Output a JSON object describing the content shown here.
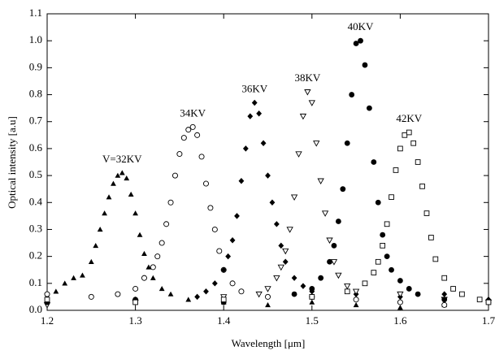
{
  "chart_data": {
    "type": "scatter",
    "x_label": "Wavelength  [μm]",
    "y_label": "Optical intensity  [a.u]",
    "xlim": [
      1.2,
      1.7
    ],
    "ylim": [
      0,
      1.1
    ],
    "xticks": [
      1.2,
      1.3,
      1.4,
      1.5,
      1.6,
      1.7
    ],
    "yticks": [
      {
        "value": 0,
        "label": "0.0"
      },
      0.1,
      0.2,
      0.3,
      0.4,
      0.5,
      0.6,
      0.7,
      0.8,
      0.9,
      {
        "value": 1,
        "label": "1.0"
      },
      1.1
    ],
    "series": [
      {
        "name": "V=32KV",
        "color": "#000000",
        "marker": "triangle",
        "x": [
          1.2,
          1.21,
          1.22,
          1.23,
          1.24,
          1.25,
          1.255,
          1.26,
          1.265,
          1.27,
          1.275,
          1.28,
          1.285,
          1.29,
          1.295,
          1.3,
          1.305,
          1.31,
          1.315,
          1.32,
          1.33,
          1.34,
          1.36,
          1.4,
          1.45,
          1.5,
          1.55,
          1.6,
          1.65
        ],
        "values": [
          0.05,
          0.07,
          0.1,
          0.12,
          0.13,
          0.18,
          0.24,
          0.3,
          0.36,
          0.42,
          0.47,
          0.5,
          0.51,
          0.49,
          0.43,
          0.36,
          0.28,
          0.21,
          0.16,
          0.12,
          0.08,
          0.06,
          0.04,
          0.03,
          0.02,
          0.03,
          0.02,
          0.01,
          0.02
        ]
      },
      {
        "name": "34KV",
        "color": "#000000",
        "marker": "circle-open",
        "x": [
          1.2,
          1.25,
          1.28,
          1.3,
          1.31,
          1.32,
          1.325,
          1.33,
          1.335,
          1.34,
          1.345,
          1.35,
          1.355,
          1.36,
          1.365,
          1.37,
          1.375,
          1.38,
          1.385,
          1.39,
          1.395,
          1.4,
          1.41,
          1.42,
          1.45,
          1.5,
          1.55,
          1.6,
          1.65
        ],
        "values": [
          0.06,
          0.05,
          0.06,
          0.08,
          0.12,
          0.16,
          0.2,
          0.25,
          0.32,
          0.4,
          0.5,
          0.58,
          0.64,
          0.67,
          0.68,
          0.65,
          0.57,
          0.47,
          0.38,
          0.3,
          0.22,
          0.15,
          0.1,
          0.07,
          0.05,
          0.05,
          0.04,
          0.03,
          0.02
        ]
      },
      {
        "name": "36KV",
        "color": "#000000",
        "marker": "diamond",
        "x": [
          1.2,
          1.3,
          1.37,
          1.38,
          1.39,
          1.4,
          1.405,
          1.41,
          1.415,
          1.42,
          1.425,
          1.43,
          1.435,
          1.44,
          1.445,
          1.45,
          1.455,
          1.46,
          1.465,
          1.47,
          1.48,
          1.49,
          1.5,
          1.55,
          1.6,
          1.65,
          1.7
        ],
        "values": [
          0.03,
          0.04,
          0.05,
          0.07,
          0.1,
          0.15,
          0.2,
          0.26,
          0.35,
          0.48,
          0.6,
          0.72,
          0.77,
          0.73,
          0.62,
          0.5,
          0.4,
          0.32,
          0.24,
          0.18,
          0.12,
          0.09,
          0.07,
          0.06,
          0.05,
          0.06,
          0.04
        ]
      },
      {
        "name": "38KV",
        "color": "#000000",
        "marker": "triangle-down-open",
        "x": [
          1.2,
          1.3,
          1.4,
          1.44,
          1.45,
          1.46,
          1.465,
          1.47,
          1.475,
          1.48,
          1.485,
          1.49,
          1.495,
          1.5,
          1.505,
          1.51,
          1.515,
          1.52,
          1.525,
          1.53,
          1.54,
          1.55,
          1.6,
          1.65,
          1.7
        ],
        "values": [
          0.02,
          0.03,
          0.05,
          0.06,
          0.08,
          0.12,
          0.16,
          0.22,
          0.3,
          0.42,
          0.58,
          0.72,
          0.81,
          0.77,
          0.62,
          0.48,
          0.36,
          0.26,
          0.18,
          0.13,
          0.09,
          0.07,
          0.06,
          0.04,
          0.03
        ]
      },
      {
        "name": "40KV",
        "color": "#000000",
        "marker": "circle",
        "x": [
          1.2,
          1.3,
          1.4,
          1.48,
          1.5,
          1.51,
          1.52,
          1.525,
          1.53,
          1.535,
          1.54,
          1.545,
          1.55,
          1.555,
          1.56,
          1.565,
          1.57,
          1.575,
          1.58,
          1.585,
          1.59,
          1.6,
          1.61,
          1.62,
          1.65,
          1.7
        ],
        "values": [
          0.03,
          0.04,
          0.03,
          0.06,
          0.08,
          0.12,
          0.18,
          0.24,
          0.33,
          0.45,
          0.62,
          0.8,
          0.99,
          1.0,
          0.91,
          0.75,
          0.55,
          0.4,
          0.28,
          0.2,
          0.15,
          0.11,
          0.08,
          0.06,
          0.04,
          0.03
        ]
      },
      {
        "name": "42KV",
        "color": "#000000",
        "marker": "square-open",
        "x": [
          1.2,
          1.3,
          1.4,
          1.5,
          1.54,
          1.56,
          1.57,
          1.575,
          1.58,
          1.585,
          1.59,
          1.595,
          1.6,
          1.605,
          1.61,
          1.615,
          1.62,
          1.625,
          1.63,
          1.635,
          1.64,
          1.65,
          1.66,
          1.67,
          1.69,
          1.7
        ],
        "values": [
          0.04,
          0.03,
          0.04,
          0.05,
          0.07,
          0.1,
          0.14,
          0.18,
          0.24,
          0.32,
          0.42,
          0.52,
          0.6,
          0.65,
          0.66,
          0.62,
          0.55,
          0.46,
          0.36,
          0.27,
          0.19,
          0.12,
          0.08,
          0.06,
          0.04,
          0.03
        ]
      }
    ]
  }
}
